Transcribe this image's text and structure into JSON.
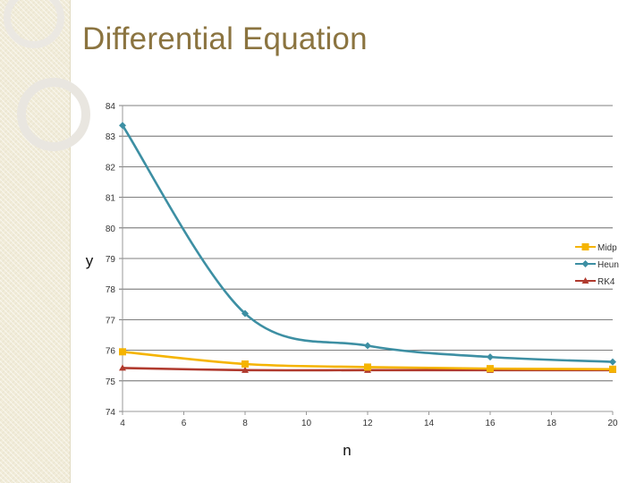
{
  "slide": {
    "title": "Differential Equation"
  },
  "chart_data": {
    "type": "line",
    "title": "",
    "xlabel": "n",
    "ylabel": "y",
    "xlim": [
      4,
      20
    ],
    "ylim": [
      74,
      84
    ],
    "xticks": [
      "4",
      "6",
      "8",
      "10",
      "12",
      "14",
      "16",
      "18",
      "20"
    ],
    "yticks": [
      "74",
      "75",
      "76",
      "77",
      "78",
      "79",
      "80",
      "81",
      "82",
      "83",
      "84"
    ],
    "grid": "horizontal",
    "legend_position": "right",
    "series": [
      {
        "name": "Midp",
        "color": "#f5b400",
        "marker": "square",
        "x": [
          4,
          8,
          12,
          16,
          20
        ],
        "y": [
          75.95,
          75.55,
          75.45,
          75.4,
          75.38
        ]
      },
      {
        "name": "Heun",
        "color": "#3d8fa3",
        "marker": "diamond",
        "x": [
          4,
          8,
          12,
          16,
          20
        ],
        "y": [
          83.35,
          77.2,
          76.15,
          75.78,
          75.62
        ]
      },
      {
        "name": "RK4",
        "color": "#b03a2e",
        "marker": "triangle",
        "x": [
          4,
          8,
          12,
          16,
          20
        ],
        "y": [
          75.42,
          75.35,
          75.35,
          75.35,
          75.35
        ]
      }
    ]
  }
}
